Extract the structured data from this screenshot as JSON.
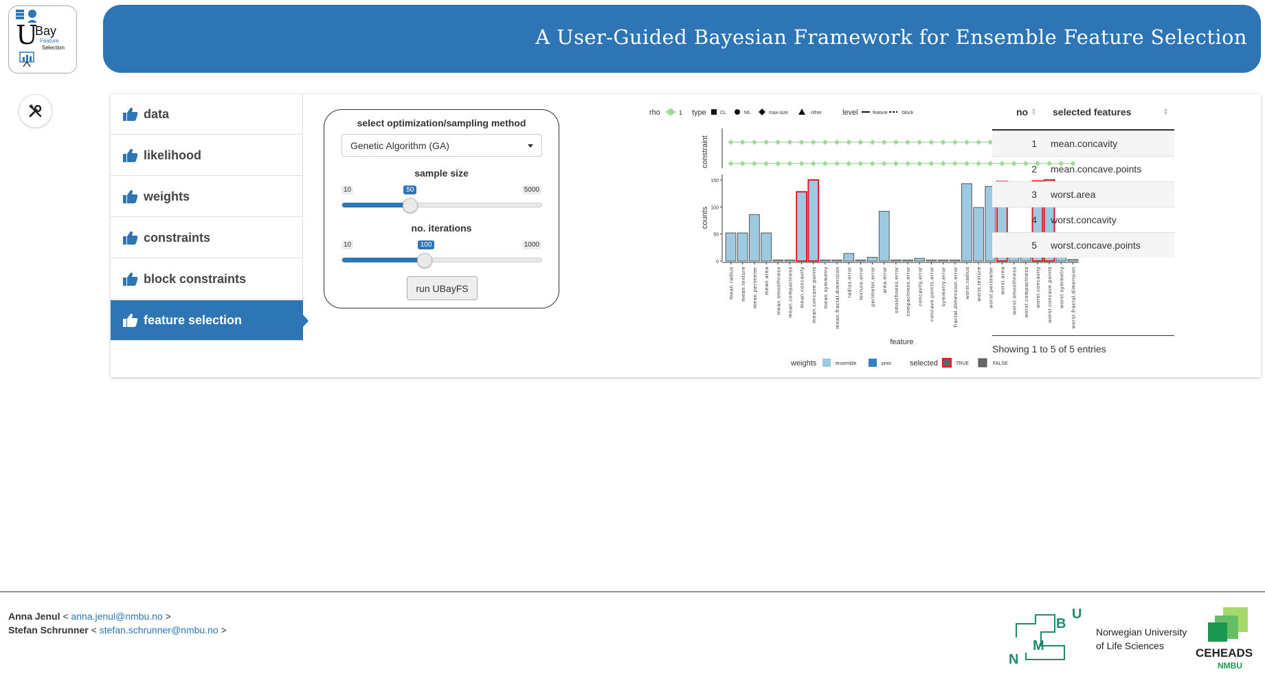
{
  "header": {
    "logo_text_big": "U",
    "logo_text_bay": "Bay",
    "logo_text_feature": "Feature",
    "logo_text_selection": "Selection",
    "title": "A User-Guided Bayesian Framework for Ensemble Feature Selection"
  },
  "sidebar": {
    "tabs": [
      {
        "label": "data"
      },
      {
        "label": "likelihood"
      },
      {
        "label": "weights"
      },
      {
        "label": "constraints"
      },
      {
        "label": "block constraints"
      },
      {
        "label": "feature selection",
        "active": true
      }
    ]
  },
  "controls": {
    "method_label": "select optimization/sampling method",
    "method_value": "Genetic Algorithm (GA)",
    "sample_size": {
      "label": "sample size",
      "min": "10",
      "max": "5000",
      "value": "50",
      "fraction": 0.34
    },
    "iterations": {
      "label": "no. iterations",
      "min": "10",
      "max": "1000",
      "value": "100",
      "fraction": 0.41
    },
    "run_button": "run UBayFS"
  },
  "chart_data": {
    "type": "bar",
    "top_legend": {
      "rho_label": "rho",
      "rho_value": "1",
      "type_label": "type",
      "type_items": [
        "CL",
        "ML",
        "max-size",
        "other"
      ],
      "level_label": "level",
      "level_items": [
        "feature",
        "block"
      ]
    },
    "constraint_ylabel": "constraint",
    "xlabel": "feature",
    "ylabel": "counts",
    "yticks": [
      "0",
      "50",
      "100",
      "150"
    ],
    "ylim": [
      0,
      160
    ],
    "categories": [
      "mean.radius",
      "mean.texture",
      "mean.perimeter",
      "mean.area",
      "mean.smoothness",
      "mean.compactness",
      "mean.concavity",
      "mean.concave.points",
      "mean.symmetry",
      "mean.fractal.dimension",
      "radius.error",
      "texture.error",
      "perimeter.error",
      "area.error",
      "smoothness.error",
      "compactness.error",
      "concavity.error",
      "concave.points.error",
      "symmetry.error",
      "fractal.dimension.error",
      "worst.radius",
      "worst.texture",
      "worst.perimeter",
      "worst.area",
      "worst.smoothness",
      "worst.compactness",
      "worst.concavity",
      "worst.concave.points",
      "worst.symmetry",
      "worst.fractal.dimension"
    ],
    "values": [
      52,
      52,
      86,
      52,
      2,
      2,
      128,
      150,
      2,
      2,
      14,
      2,
      7,
      92,
      2,
      2,
      5,
      2,
      2,
      2,
      143,
      99,
      138,
      147,
      12,
      11,
      148,
      150,
      46,
      3
    ],
    "selected": [
      false,
      false,
      false,
      false,
      false,
      false,
      true,
      true,
      false,
      false,
      false,
      false,
      false,
      false,
      false,
      false,
      false,
      false,
      false,
      false,
      false,
      false,
      false,
      true,
      false,
      false,
      true,
      true,
      false,
      false
    ],
    "bottom_legend": {
      "weights_label": "weights",
      "weights_items": [
        "ensemble",
        "prior"
      ],
      "selected_label": "selected",
      "selected_items": [
        "TRUE",
        "FALSE"
      ]
    },
    "colors": {
      "bar": "#9ecae1",
      "prior": "#3182bd",
      "selected_border": "#e41a1c",
      "constraint_point": "#a1d99b"
    }
  },
  "table": {
    "headers": {
      "no": "no",
      "feature": "selected features"
    },
    "rows": [
      {
        "no": "1",
        "feature": "mean.concavity"
      },
      {
        "no": "2",
        "feature": "mean.concave.points"
      },
      {
        "no": "3",
        "feature": "worst.area"
      },
      {
        "no": "4",
        "feature": "worst.concavity"
      },
      {
        "no": "5",
        "feature": "worst.concave.points"
      }
    ],
    "info": "Showing 1 to 5 of 5 entries"
  },
  "footer": {
    "authors": [
      {
        "name": "Anna Jenul",
        "email": "anna.jenul@nmbu.no"
      },
      {
        "name": "Stefan Schrunner",
        "email": "stefan.schrunner@nmbu.no"
      }
    ],
    "nmbu_letters": {
      "n": "N",
      "m": "M",
      "b": "B",
      "u": "U"
    },
    "univ_line1": "Norwegian University",
    "univ_line2": "of Life Sciences",
    "ceheads": "CEHEADS",
    "nmbu_small": "NMBU"
  }
}
